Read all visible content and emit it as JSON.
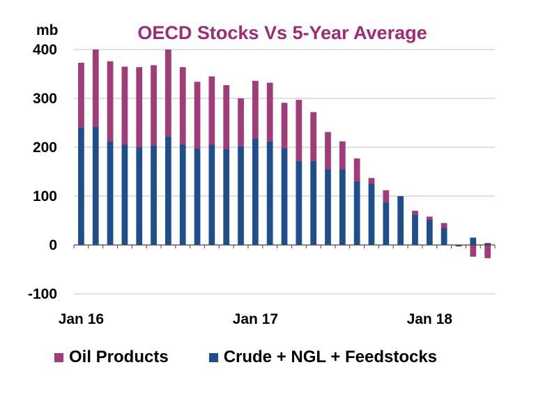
{
  "chart_data": {
    "type": "bar",
    "stacked": true,
    "title": "OECD Stocks Vs 5-Year Average",
    "ylabel": "mb",
    "xlabel": "",
    "ylim": [
      -100,
      400
    ],
    "yticks": [
      -100,
      0,
      100,
      200,
      300,
      400
    ],
    "grid": true,
    "legend_position": "bottom",
    "x_tick_labels": [
      {
        "label": "Jan 16",
        "index": 0
      },
      {
        "label": "Jan 17",
        "index": 12
      },
      {
        "label": "Jan 18",
        "index": 24
      }
    ],
    "categories": [
      "Jan 16",
      "Feb 16",
      "Mar 16",
      "Apr 16",
      "May 16",
      "Jun 16",
      "Jul 16",
      "Aug 16",
      "Sep 16",
      "Oct 16",
      "Nov 16",
      "Dec 16",
      "Jan 17",
      "Feb 17",
      "Mar 17",
      "Apr 17",
      "May 17",
      "Jun 17",
      "Jul 17",
      "Aug 17",
      "Sep 17",
      "Oct 17",
      "Nov 17",
      "Dec 17",
      "Jan 18",
      "Feb 18",
      "Mar 18",
      "Apr 18",
      "May 18"
    ],
    "series": [
      {
        "name": "Crude + NGL + Feedstocks",
        "color": "#1F4E8C",
        "values": [
          240,
          242,
          212,
          205,
          200,
          204,
          222,
          206,
          198,
          205,
          197,
          202,
          218,
          212,
          198,
          172,
          172,
          155,
          155,
          130,
          125,
          87,
          100,
          62,
          52,
          35,
          -3,
          15,
          4
        ]
      },
      {
        "name": "Oil Products",
        "color": "#A03C78",
        "values": [
          133,
          158,
          164,
          160,
          164,
          164,
          178,
          158,
          136,
          140,
          130,
          98,
          118,
          120,
          93,
          125,
          100,
          76,
          57,
          47,
          12,
          25,
          0,
          8,
          6,
          10,
          0,
          -24,
          -27
        ]
      }
    ]
  },
  "legend": {
    "items": [
      {
        "label": "Oil Products",
        "color": "#A03C78"
      },
      {
        "label": "Crude + NGL + Feedstocks",
        "color": "#1F4E8C"
      }
    ]
  },
  "colors": {
    "title": "#9E2B75",
    "grid": "#BFBFBF",
    "axis": "#404040"
  }
}
